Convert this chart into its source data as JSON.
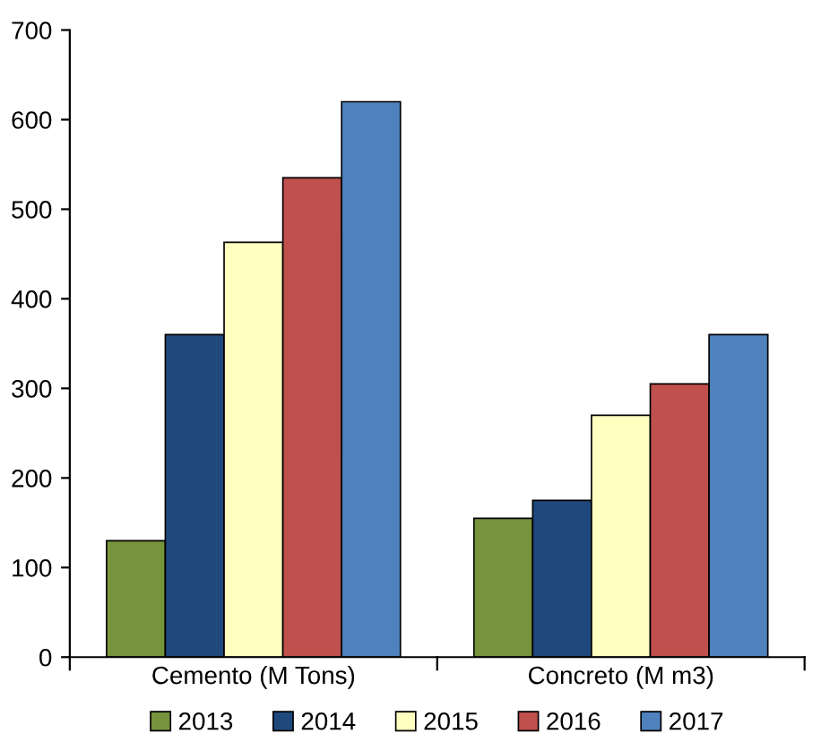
{
  "chart_data": {
    "type": "bar",
    "categories": [
      "Cemento (M Tons)",
      "Concreto (M m3)"
    ],
    "series": [
      {
        "name": "2013",
        "color": "#77933c",
        "values": [
          130,
          155
        ]
      },
      {
        "name": "2014",
        "color": "#1f497d",
        "values": [
          360,
          175
        ]
      },
      {
        "name": "2015",
        "color": "#ffffc0",
        "values": [
          463,
          270
        ]
      },
      {
        "name": "2016",
        "color": "#c0504d",
        "values": [
          535,
          305
        ]
      },
      {
        "name": "2017",
        "color": "#4f81bd",
        "values": [
          620,
          360
        ]
      }
    ],
    "ylim": [
      0,
      700
    ],
    "yticks": [
      0,
      100,
      200,
      300,
      400,
      500,
      600,
      700
    ],
    "grid": false,
    "legend": "bottom"
  }
}
